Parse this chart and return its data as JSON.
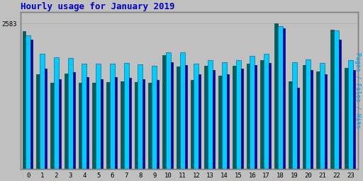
{
  "title": "Hourly usage for January 2019",
  "title_color": "#0000cc",
  "title_fontsize": 9,
  "hours": [
    0,
    1,
    2,
    3,
    4,
    5,
    6,
    7,
    8,
    9,
    10,
    11,
    12,
    13,
    14,
    15,
    16,
    17,
    18,
    19,
    20,
    21,
    22,
    23
  ],
  "ymax": 2583,
  "ytick_label": "2583",
  "background_color": "#c0c0c0",
  "plot_bg_color": "#c0c0c0",
  "pages_color": "#006060",
  "files_color": "#0000bb",
  "hits_color": "#00ccff",
  "ylabel_text": "Pages / Files / Hits",
  "ylabel_color": "#00aaff",
  "pages": [
    2450,
    1680,
    1540,
    1700,
    1530,
    1530,
    1550,
    1560,
    1550,
    1540,
    2020,
    1820,
    1580,
    1840,
    1660,
    1830,
    1870,
    1930,
    2583,
    1560,
    1850,
    1730,
    2470,
    1800
  ],
  "files": [
    2300,
    1780,
    1600,
    1720,
    1640,
    1600,
    1630,
    1620,
    1600,
    1580,
    1900,
    1850,
    1680,
    1760,
    1680,
    1780,
    1850,
    1880,
    2500,
    1450,
    1760,
    1680,
    2300,
    1760
  ],
  "hits": [
    2380,
    2050,
    1980,
    1970,
    1870,
    1870,
    1870,
    1890,
    1860,
    1840,
    2080,
    2070,
    1870,
    1930,
    1900,
    1940,
    2010,
    2050,
    2540,
    1900,
    1950,
    1880,
    2460,
    1940
  ]
}
